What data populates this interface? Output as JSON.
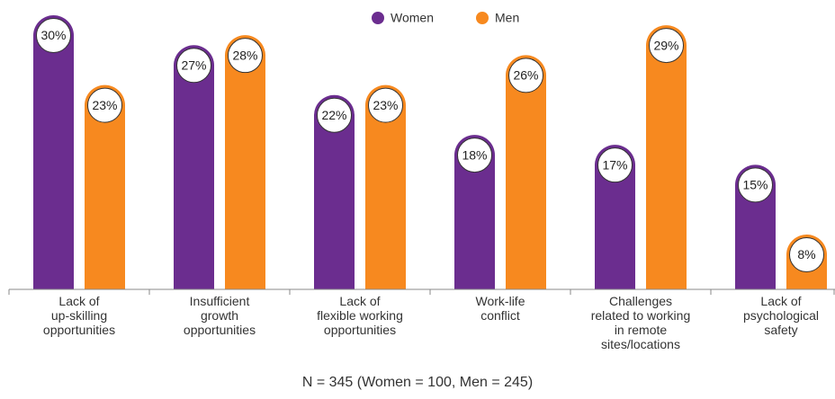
{
  "chart_data": {
    "type": "bar",
    "categories": [
      "Lack of\nup-skilling\nopportunities",
      "Insufficient\ngrowth\nopportunities",
      "Lack of\nflexible working\nopportunities",
      "Work-life\nconflict",
      "Challenges\nrelated to working\nin remote\nsites/locations",
      "Lack of\npsychological\nsafety"
    ],
    "series": [
      {
        "name": "Women",
        "color": "#6b2d8f",
        "values": [
          30,
          27,
          22,
          18,
          17,
          15
        ],
        "value_labels": [
          "30%",
          "27%",
          "22%",
          "18%",
          "17%",
          "15%"
        ]
      },
      {
        "name": "Men",
        "color": "#f7891f",
        "values": [
          23,
          28,
          23,
          26,
          29,
          8
        ],
        "value_labels": [
          "23%",
          "28%",
          "23%",
          "26%",
          "29%",
          "8%"
        ]
      }
    ],
    "ylim": [
      2.5,
      30
    ],
    "legend": "top",
    "note": "N = 345 (Women = 100, Men = 245)"
  }
}
